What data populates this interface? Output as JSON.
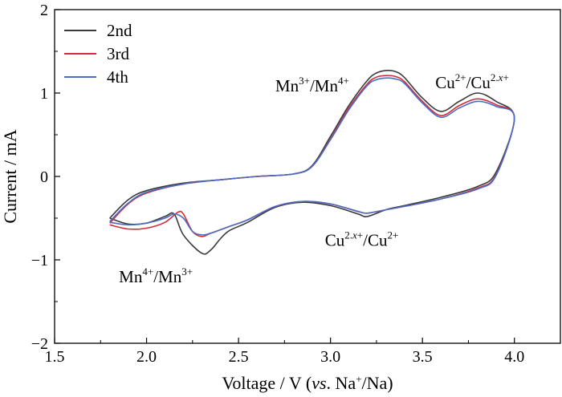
{
  "chart_data": {
    "type": "line",
    "xlabel": "Voltage / V (vs. Na+/Na)",
    "xlabel_parts": {
      "pre": "Voltage / V (",
      "italic": "vs",
      "mid": ". Na",
      "sup": "+",
      "post": "/Na)"
    },
    "ylabel": "Current / mA",
    "xlim": [
      1.5,
      4.25
    ],
    "ylim": [
      -2,
      2
    ],
    "x_ticks": [
      1.5,
      2.0,
      2.5,
      3.0,
      3.5,
      4.0
    ],
    "x_tick_labels": [
      "1.5",
      "2.0",
      "2.5",
      "3.0",
      "3.5",
      "4.0"
    ],
    "y_ticks": [
      -2,
      -1,
      0,
      1,
      2
    ],
    "y_tick_labels": [
      "−2",
      "−1",
      "0",
      "1",
      "2"
    ],
    "grid": false,
    "legend_position": "top-left",
    "series": [
      {
        "name": "2nd",
        "color": "#3a3a3a",
        "anodic": [
          [
            1.8,
            -0.5
          ],
          [
            1.9,
            -0.28
          ],
          [
            2.0,
            -0.17
          ],
          [
            2.2,
            -0.08
          ],
          [
            2.4,
            -0.04
          ],
          [
            2.6,
            0.0
          ],
          [
            2.8,
            0.03
          ],
          [
            2.9,
            0.13
          ],
          [
            3.0,
            0.48
          ],
          [
            3.1,
            0.85
          ],
          [
            3.2,
            1.15
          ],
          [
            3.25,
            1.24
          ],
          [
            3.3,
            1.27
          ],
          [
            3.35,
            1.26
          ],
          [
            3.4,
            1.19
          ],
          [
            3.5,
            0.94
          ],
          [
            3.6,
            0.78
          ],
          [
            3.7,
            0.9
          ],
          [
            3.8,
            1.0
          ],
          [
            3.9,
            0.9
          ],
          [
            4.0,
            0.7
          ]
        ],
        "cathodic": [
          [
            4.0,
            0.7
          ],
          [
            3.9,
            0.05
          ],
          [
            3.8,
            -0.12
          ],
          [
            3.6,
            -0.25
          ],
          [
            3.4,
            -0.35
          ],
          [
            3.3,
            -0.4
          ],
          [
            3.2,
            -0.48
          ],
          [
            3.15,
            -0.45
          ],
          [
            3.0,
            -0.35
          ],
          [
            2.85,
            -0.31
          ],
          [
            2.7,
            -0.37
          ],
          [
            2.55,
            -0.55
          ],
          [
            2.45,
            -0.65
          ],
          [
            2.4,
            -0.75
          ],
          [
            2.35,
            -0.88
          ],
          [
            2.3,
            -0.92
          ],
          [
            2.2,
            -0.7
          ],
          [
            2.15,
            -0.45
          ],
          [
            2.1,
            -0.48
          ],
          [
            2.0,
            -0.56
          ],
          [
            1.9,
            -0.57
          ],
          [
            1.8,
            -0.5
          ]
        ]
      },
      {
        "name": "3rd",
        "color": "#d22b3a",
        "anodic": [
          [
            1.8,
            -0.56
          ],
          [
            1.9,
            -0.33
          ],
          [
            2.0,
            -0.2
          ],
          [
            2.2,
            -0.09
          ],
          [
            2.4,
            -0.04
          ],
          [
            2.6,
            0.0
          ],
          [
            2.8,
            0.03
          ],
          [
            2.9,
            0.12
          ],
          [
            3.0,
            0.45
          ],
          [
            3.1,
            0.82
          ],
          [
            3.2,
            1.11
          ],
          [
            3.25,
            1.19
          ],
          [
            3.3,
            1.21
          ],
          [
            3.35,
            1.2
          ],
          [
            3.4,
            1.14
          ],
          [
            3.5,
            0.9
          ],
          [
            3.6,
            0.73
          ],
          [
            3.7,
            0.85
          ],
          [
            3.8,
            0.93
          ],
          [
            3.9,
            0.86
          ],
          [
            4.0,
            0.7
          ]
        ],
        "cathodic": [
          [
            4.0,
            0.7
          ],
          [
            3.9,
            0.02
          ],
          [
            3.8,
            -0.14
          ],
          [
            3.6,
            -0.27
          ],
          [
            3.4,
            -0.36
          ],
          [
            3.3,
            -0.4
          ],
          [
            3.2,
            -0.44
          ],
          [
            3.15,
            -0.42
          ],
          [
            3.0,
            -0.33
          ],
          [
            2.85,
            -0.3
          ],
          [
            2.7,
            -0.36
          ],
          [
            2.55,
            -0.52
          ],
          [
            2.45,
            -0.6
          ],
          [
            2.35,
            -0.68
          ],
          [
            2.3,
            -0.72
          ],
          [
            2.25,
            -0.66
          ],
          [
            2.2,
            -0.45
          ],
          [
            2.17,
            -0.43
          ],
          [
            2.1,
            -0.55
          ],
          [
            2.0,
            -0.62
          ],
          [
            1.9,
            -0.63
          ],
          [
            1.8,
            -0.58
          ]
        ]
      },
      {
        "name": "4th",
        "color": "#4a6cc4",
        "anodic": [
          [
            1.8,
            -0.54
          ],
          [
            1.9,
            -0.32
          ],
          [
            2.0,
            -0.19
          ],
          [
            2.2,
            -0.09
          ],
          [
            2.4,
            -0.04
          ],
          [
            2.6,
            0.0
          ],
          [
            2.8,
            0.03
          ],
          [
            2.9,
            0.12
          ],
          [
            3.0,
            0.44
          ],
          [
            3.1,
            0.8
          ],
          [
            3.2,
            1.09
          ],
          [
            3.25,
            1.16
          ],
          [
            3.3,
            1.18
          ],
          [
            3.35,
            1.17
          ],
          [
            3.4,
            1.12
          ],
          [
            3.5,
            0.88
          ],
          [
            3.6,
            0.71
          ],
          [
            3.7,
            0.82
          ],
          [
            3.8,
            0.9
          ],
          [
            3.9,
            0.84
          ],
          [
            4.0,
            0.7
          ]
        ],
        "cathodic": [
          [
            4.0,
            0.7
          ],
          [
            3.9,
            0.01
          ],
          [
            3.8,
            -0.15
          ],
          [
            3.6,
            -0.27
          ],
          [
            3.4,
            -0.36
          ],
          [
            3.3,
            -0.4
          ],
          [
            3.2,
            -0.44
          ],
          [
            3.15,
            -0.42
          ],
          [
            3.0,
            -0.33
          ],
          [
            2.85,
            -0.3
          ],
          [
            2.7,
            -0.36
          ],
          [
            2.55,
            -0.52
          ],
          [
            2.45,
            -0.6
          ],
          [
            2.35,
            -0.68
          ],
          [
            2.3,
            -0.7
          ],
          [
            2.25,
            -0.66
          ],
          [
            2.2,
            -0.5
          ],
          [
            2.15,
            -0.45
          ],
          [
            2.1,
            -0.5
          ],
          [
            2.0,
            -0.56
          ],
          [
            1.9,
            -0.58
          ],
          [
            1.8,
            -0.55
          ]
        ]
      }
    ],
    "annotations": [
      {
        "name": "mn-oxidation",
        "base1": "Mn",
        "sup1": "3+",
        "sep": "/",
        "base2": "Mn",
        "sup2": "4+",
        "x": 2.7,
        "y": 1.02
      },
      {
        "name": "cu-oxidation",
        "base1": "Cu",
        "sup1": "2+",
        "sep": "/",
        "base2": "Cu",
        "sup2": "2.",
        "sup2_italic": "x",
        "sup2_tail": "+",
        "x": 3.57,
        "y": 1.06
      },
      {
        "name": "cu-reduction",
        "base1": "Cu",
        "sup1": "2.",
        "sup1_italic": "x",
        "sup1_tail": "+",
        "sep": "/",
        "base2": "Cu",
        "sup2": "2+",
        "x": 2.97,
        "y": -0.83
      },
      {
        "name": "mn-reduction",
        "base1": "Mn",
        "sup1": "4+",
        "sep": "/",
        "base2": "Mn",
        "sup2": "3+",
        "x": 1.85,
        "y": -1.27
      }
    ]
  }
}
